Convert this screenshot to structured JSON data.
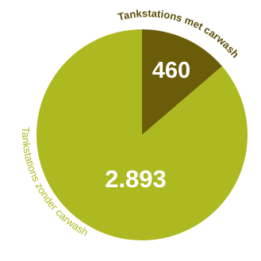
{
  "chart_data": {
    "type": "pie",
    "title": "",
    "slices": [
      {
        "label": "Tankstations met carwash",
        "value": 460,
        "display": "460",
        "color": "#6b5c0a",
        "label_color": "#5c4e08"
      },
      {
        "label": "Tankstations zonder carwash",
        "value": 2893,
        "display": "2.893",
        "color": "#adb920",
        "label_color": "#adb920"
      }
    ]
  }
}
